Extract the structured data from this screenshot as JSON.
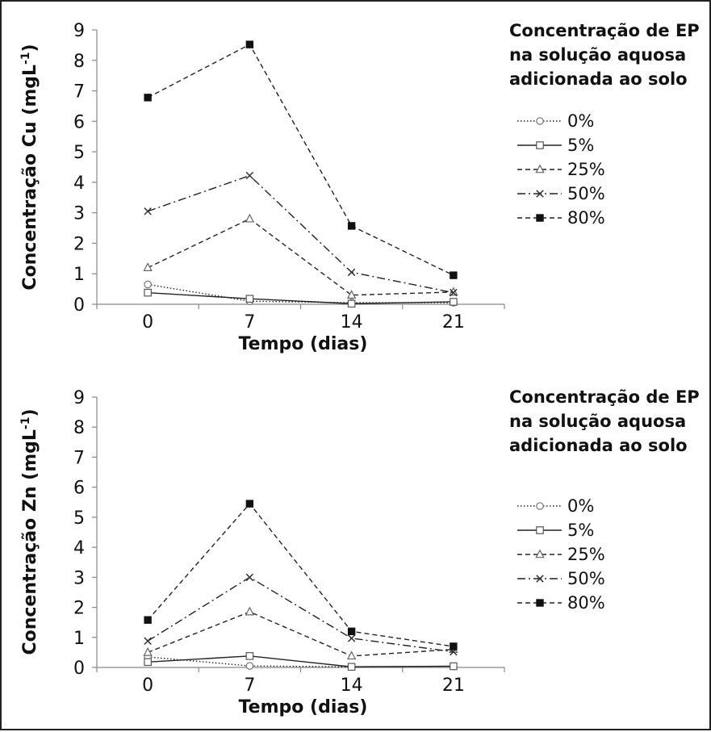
{
  "chart_data": [
    {
      "type": "line",
      "ylabel": "Concentração Cu (mgL",
      "ylabel_sup": "-1",
      "ylabel_close": ")",
      "xlabel": "Tempo (dias)",
      "x": [
        "0",
        "7",
        "14",
        "21"
      ],
      "y_ticks": [
        "0",
        "1",
        "2",
        "3",
        "4",
        "5",
        "6",
        "7",
        "8",
        "9"
      ],
      "ylim": [
        0,
        9
      ],
      "grid": false,
      "legend_placement": "right",
      "legend_title": [
        "Concentração de EP",
        "na solução aquosa",
        "adicionada ao solo"
      ],
      "series": [
        {
          "name": "0%",
          "values": [
            0.65,
            0.1,
            0.05,
            0.05
          ],
          "dash": "dotted",
          "marker": "circle"
        },
        {
          "name": "5%",
          "values": [
            0.38,
            0.18,
            0.02,
            0.08
          ],
          "dash": "solid",
          "marker": "square-open"
        },
        {
          "name": "25%",
          "values": [
            1.2,
            2.8,
            0.3,
            0.4
          ],
          "dash": "dashed",
          "marker": "triangle"
        },
        {
          "name": "50%",
          "values": [
            3.05,
            4.22,
            1.05,
            0.38
          ],
          "dash": "dashdot",
          "marker": "x"
        },
        {
          "name": "80%",
          "values": [
            6.78,
            8.52,
            2.57,
            0.95
          ],
          "dash": "dashed",
          "marker": "square-filled"
        }
      ]
    },
    {
      "type": "line",
      "ylabel": "Concentração Zn (mgL",
      "ylabel_sup": "-1",
      "ylabel_close": ")",
      "xlabel": "Tempo (dias)",
      "x": [
        "0",
        "7",
        "14",
        "21"
      ],
      "y_ticks": [
        "0",
        "1",
        "2",
        "3",
        "4",
        "5",
        "6",
        "7",
        "8",
        "9"
      ],
      "ylim": [
        0,
        9
      ],
      "grid": false,
      "legend_placement": "right",
      "legend_title": [
        "Concentração de EP",
        "na solução aquosa",
        "adicionada ao solo"
      ],
      "series": [
        {
          "name": "0%",
          "values": [
            0.35,
            0.05,
            0.02,
            0.04
          ],
          "dash": "dotted",
          "marker": "circle"
        },
        {
          "name": "5%",
          "values": [
            0.18,
            0.38,
            0.02,
            0.04
          ],
          "dash": "solid",
          "marker": "square-open"
        },
        {
          "name": "25%",
          "values": [
            0.5,
            1.85,
            0.38,
            0.6
          ],
          "dash": "dashed",
          "marker": "triangle"
        },
        {
          "name": "50%",
          "values": [
            0.88,
            3.0,
            0.97,
            0.52
          ],
          "dash": "dashdot",
          "marker": "x"
        },
        {
          "name": "80%",
          "values": [
            1.58,
            5.45,
            1.2,
            0.7
          ],
          "dash": "dashed",
          "marker": "square-filled"
        }
      ]
    }
  ]
}
